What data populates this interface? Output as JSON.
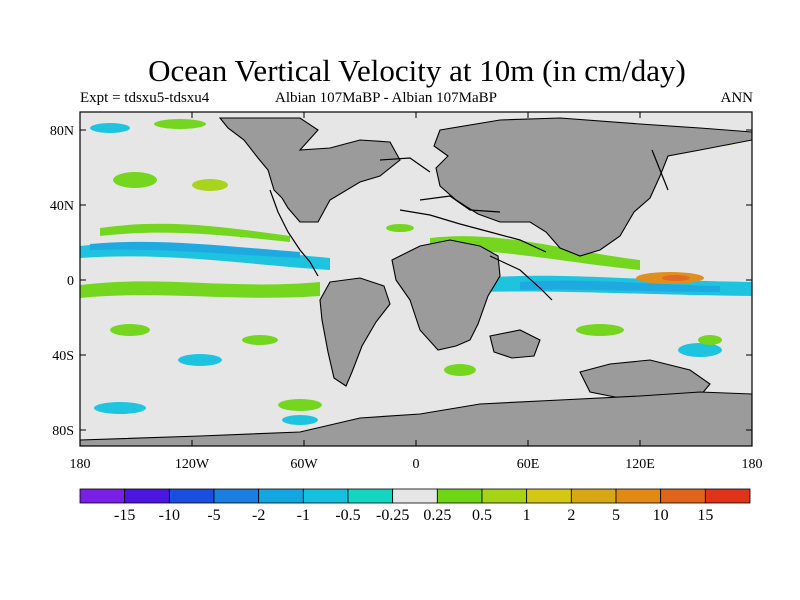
{
  "title": "Ocean Vertical Velocity at 10m (in cm/day)",
  "subtitle": {
    "left": "Expt = tdsxu5-tdsxu4",
    "center": "Albian   107MaBP - Albian   107MaBP",
    "right": "ANN"
  },
  "axes": {
    "lon_ticks": [
      "180",
      "120W",
      "60W",
      "0",
      "60E",
      "120E",
      "180"
    ],
    "lat_ticks": [
      "80N",
      "40N",
      "0",
      "40S",
      "80S"
    ]
  },
  "colors": {
    "land": "#9b9b9b",
    "ocean_neutral": "#e6e6e6",
    "coast": "#000000"
  },
  "colorbar": {
    "colors": [
      "#7a20e6",
      "#4a16e0",
      "#1a4ee0",
      "#1a7fe0",
      "#14a6e0",
      "#14c2e0",
      "#14d6c0",
      "#e6e6e6",
      "#6ed614",
      "#a6d414",
      "#d4c814",
      "#d6a814",
      "#e08a14",
      "#e0641a",
      "#e0341a"
    ],
    "labels": [
      "-15",
      "-10",
      "-5",
      "-2",
      "-1",
      "-0.5",
      "-0.25",
      "0.25",
      "0.5",
      "1",
      "2",
      "5",
      "10",
      "15"
    ]
  }
}
